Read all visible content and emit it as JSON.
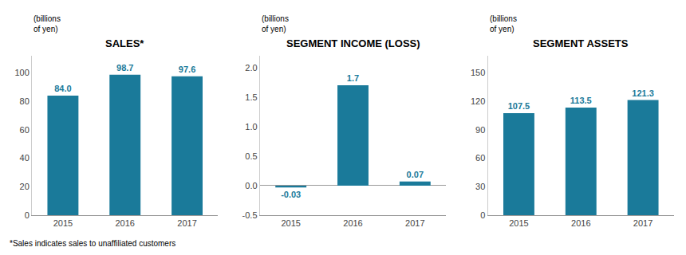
{
  "chart_data": [
    {
      "type": "bar",
      "title": "SALES*",
      "ylabel": "(billions\nof yen)",
      "categories": [
        "2015",
        "2016",
        "2017"
      ],
      "values": [
        84.0,
        98.7,
        97.6
      ],
      "value_labels": [
        "84.0",
        "98.7",
        "97.6"
      ],
      "data_labels": true,
      "color": "#1a7a9a",
      "ylim": [
        0,
        112
      ],
      "yticks": [
        0,
        20,
        40,
        60,
        80,
        100
      ],
      "grid": false,
      "annotations": [
        "*Sales indicates sales to unaffiliated customers"
      ]
    },
    {
      "type": "bar",
      "title": "SEGMENT INCOME (LOSS)",
      "ylabel": "(billions\nof yen)",
      "categories": [
        "2015",
        "2016",
        "2017"
      ],
      "values": [
        -0.03,
        1.7,
        0.07
      ],
      "value_labels": [
        "-0.03",
        "1.7",
        "0.07"
      ],
      "data_labels": true,
      "color": "#1a7a9a",
      "ylim": [
        -0.5,
        2.2
      ],
      "yticks": [
        -0.5,
        {
          "value": 0.0,
          "label": "0.0"
        },
        0.5,
        {
          "value": 1.0,
          "label": "1.0"
        },
        1.5,
        {
          "value": 2.0,
          "label": "2.0"
        }
      ],
      "grid": false
    },
    {
      "type": "bar",
      "title": "SEGMENT ASSETS",
      "ylabel": "(billions\nof yen)",
      "categories": [
        "2015",
        "2016",
        "2017"
      ],
      "values": [
        107.5,
        113.5,
        121.3
      ],
      "value_labels": [
        "107.5",
        "113.5",
        "121.3"
      ],
      "data_labels": true,
      "color": "#1a7a9a",
      "ylim": [
        0,
        168
      ],
      "yticks": [
        0,
        30,
        60,
        90,
        120,
        150
      ],
      "grid": false
    }
  ]
}
